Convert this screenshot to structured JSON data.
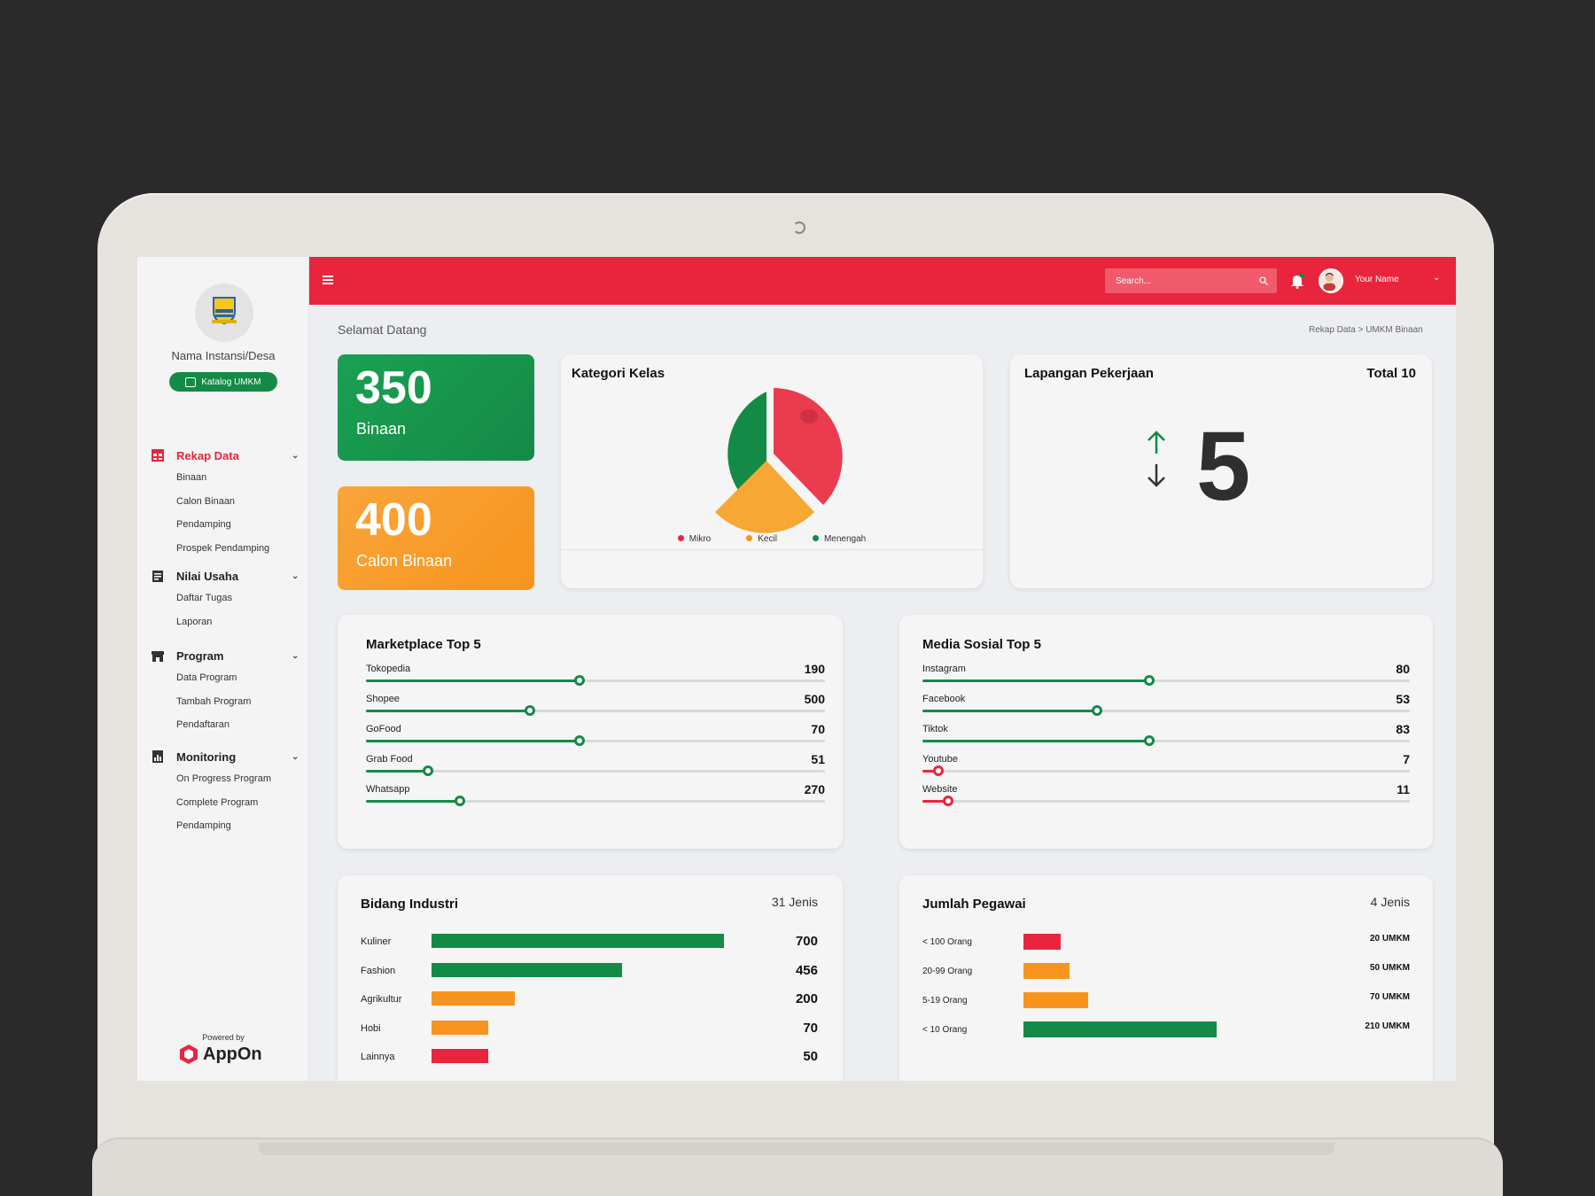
{
  "sidebar": {
    "org_name": "Nama Instansi/Desa",
    "katalog_label": "Katalog UMKM",
    "sections": [
      {
        "label": "Rekap Data",
        "items": [
          "Binaan",
          "Calon Binaan",
          "Pendamping",
          "Prospek Pendamping"
        ]
      },
      {
        "label": "Nilai Usaha",
        "items": [
          "Daftar Tugas",
          "Laporan"
        ]
      },
      {
        "label": "Program",
        "items": [
          "Data Program",
          "Tambah  Program",
          "Pendaftaran"
        ]
      },
      {
        "label": "Monitoring",
        "items": [
          "On Progress Program",
          "Complete Program",
          "Pendamping"
        ]
      }
    ],
    "powered_by": "Powered by",
    "brand": "AppOn"
  },
  "header": {
    "search_placeholder": "Search...",
    "user_name": "Your Name"
  },
  "page": {
    "welcome": "Selamat Datang",
    "breadcrumb": "Rekap Data  >  UMKM Binaan"
  },
  "stats": {
    "binaan": {
      "value": "350",
      "label": "Binaan"
    },
    "calon": {
      "value": "400",
      "label": "Calon Binaan"
    }
  },
  "kategori": {
    "title": "Kategori Kelas",
    "legend": [
      "Mikro",
      "Kecil",
      "Menengah"
    ]
  },
  "lapangan": {
    "title": "Lapangan Pekerjaan",
    "total": "Total 10",
    "value": "5"
  },
  "marketplace": {
    "title": "Marketplace Top 5",
    "items": [
      {
        "name": "Tokopedia",
        "value": "190",
        "level": 0.465
      },
      {
        "name": "Shopee",
        "value": "500",
        "level": 0.358
      },
      {
        "name": "GoFood",
        "value": "70",
        "level": 0.465
      },
      {
        "name": "Grab Food",
        "value": "51",
        "level": 0.135
      },
      {
        "name": "Whatsapp",
        "value": "270",
        "level": 0.205
      }
    ]
  },
  "media": {
    "title": "Media Sosial Top 5",
    "items": [
      {
        "name": "Instagram",
        "value": "80",
        "level": 0.465
      },
      {
        "name": "Facebook",
        "value": "53",
        "level": 0.358
      },
      {
        "name": "Tiktok",
        "value": "83",
        "level": 0.465
      },
      {
        "name": "Youtube",
        "value": "7",
        "level": 0.032
      },
      {
        "name": "Website",
        "value": "11",
        "level": 0.052
      }
    ]
  },
  "bidang": {
    "title": "Bidang Industri",
    "meta": "31 Jenis",
    "items": [
      {
        "name": "Kuliner",
        "value": "700",
        "amount": 700
      },
      {
        "name": "Fashion",
        "value": "456",
        "amount": 456
      },
      {
        "name": "Agrikultur",
        "value": "200",
        "amount": 200
      },
      {
        "name": "Hobi",
        "value": "70",
        "amount": 70
      },
      {
        "name": "Lainnya",
        "value": "50",
        "amount": 50
      }
    ]
  },
  "pegawai": {
    "title": "Jumlah Pegawai",
    "meta": "4 Jenis",
    "items": [
      {
        "name": "< 100 Orang",
        "value": "20 UMKM",
        "amount": 20
      },
      {
        "name": "20-99 Orang",
        "value": "50 UMKM",
        "amount": 50
      },
      {
        "name": "5-19 Orang",
        "value": "70 UMKM",
        "amount": 70
      },
      {
        "name": "< 10 Orang",
        "value": "210 UMKM",
        "amount": 210
      }
    ]
  },
  "colors": {
    "brand_red": "#e8253d",
    "green": "#148a47",
    "orange": "#f7941d",
    "red": "#e8253d"
  }
}
